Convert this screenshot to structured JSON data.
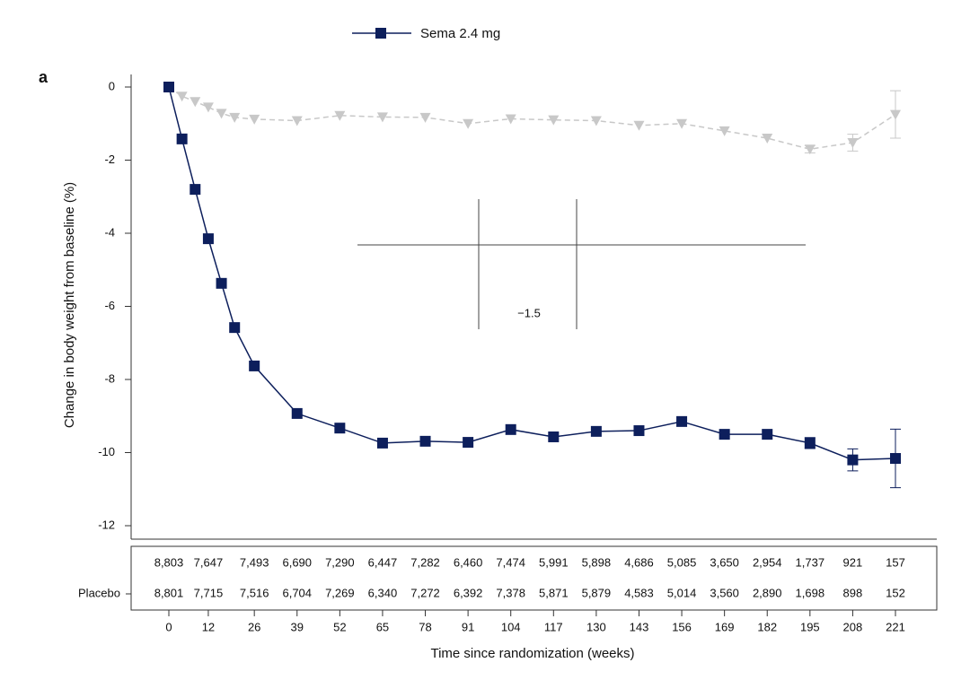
{
  "panel_label": "a",
  "chart_data": {
    "type": "line",
    "ylabel": "Change in body weight from baseline (%)",
    "xlabel": "Time since randomization (weeks)",
    "annotation": "−1.5",
    "x": [
      0,
      4,
      8,
      12,
      16,
      20,
      26,
      39,
      52,
      65,
      78,
      91,
      104,
      117,
      130,
      143,
      156,
      169,
      182,
      195,
      208,
      221
    ],
    "series": [
      {
        "name": "Sema 2.4 mg",
        "color": "#0d1f5c",
        "marker": "square",
        "values": [
          0,
          -1.42,
          -2.8,
          -4.15,
          -5.37,
          -6.58,
          -7.63,
          -8.93,
          -9.33,
          -9.74,
          -9.69,
          -9.72,
          -9.37,
          -9.57,
          -9.42,
          -9.4,
          -9.15,
          -9.5,
          -9.5,
          -9.74,
          -10.2,
          -10.16
        ],
        "errors": [
          null,
          null,
          null,
          null,
          null,
          null,
          null,
          null,
          null,
          null,
          null,
          null,
          null,
          null,
          null,
          null,
          null,
          null,
          null,
          0.15,
          0.3,
          0.8
        ]
      },
      {
        "name": "Placebo",
        "color": "#c8c8c8",
        "marker": "triangle",
        "dashed": true,
        "values": [
          0,
          -0.25,
          -0.4,
          -0.55,
          -0.72,
          -0.83,
          -0.88,
          -0.92,
          -0.78,
          -0.82,
          -0.83,
          -1.0,
          -0.87,
          -0.9,
          -0.92,
          -1.05,
          -1.0,
          -1.2,
          -1.4,
          -1.7,
          -1.52,
          -0.75
        ],
        "errors": [
          null,
          null,
          null,
          null,
          null,
          null,
          null,
          null,
          null,
          null,
          null,
          null,
          null,
          null,
          null,
          null,
          null,
          null,
          null,
          0.1,
          0.23,
          0.65
        ]
      }
    ],
    "xlim": [
      0,
      221
    ],
    "xticks": [
      0,
      12,
      26,
      39,
      52,
      65,
      78,
      91,
      104,
      117,
      130,
      143,
      156,
      169,
      182,
      195,
      208,
      221
    ],
    "ylim": [
      0,
      -12
    ],
    "yticks": [
      0,
      -2,
      -4,
      -6,
      -8,
      -10,
      -12
    ],
    "number_at_risk": [
      [
        "8,803",
        "7,647",
        "7,493",
        "6,690",
        "7,290",
        "6,447",
        "7,282",
        "6,460",
        "7,474",
        "5,991",
        "5,898",
        "4,686",
        "5,085",
        "3,650",
        "2,954",
        "1,737",
        "921",
        "157"
      ],
      [
        "8,801",
        "7,715",
        "7,516",
        "6,704",
        "7,269",
        "6,340",
        "7,272",
        "6,392",
        "7,378",
        "5,871",
        "5,879",
        "4,583",
        "5,014",
        "3,560",
        "2,890",
        "1,698",
        "898",
        "152"
      ]
    ]
  }
}
